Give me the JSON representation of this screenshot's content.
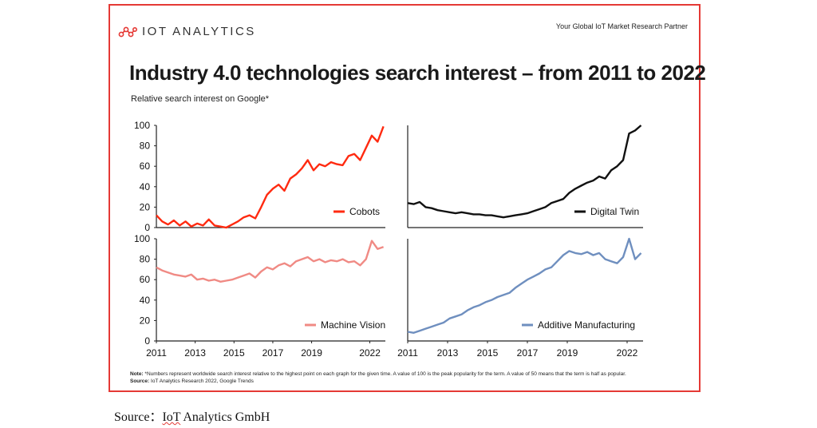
{
  "header": {
    "logo_text": "IOT ANALYTICS",
    "tagline": "Your Global IoT Market Research Partner",
    "title": "Industry 4.0 technologies search interest – from 2011 to 2022",
    "subtitle": "Relative search interest on Google*"
  },
  "footer": {
    "note_label": "Note:",
    "note_text": "*Numbers represent worldwide search interest relative to the highest point on each graph for the given time. A value of 100 is the peak popularity for the term. A value of 50 means that the term is half as popular.",
    "source_label": "Source:",
    "source_text": "IoT Analytics Research 2022, Google Trends"
  },
  "caption": {
    "prefix": "Source：",
    "underlined": "IoT",
    "rest": " Analytics GmbH"
  },
  "colors": {
    "frame": "#e53935",
    "cobots": "#ff2a10",
    "digital_twin": "#111111",
    "machine_vision": "#f08a84",
    "additive_manufacturing": "#6f8fbf"
  },
  "chart_data": [
    {
      "type": "line",
      "series_name": "Cobots",
      "color": "#ff2a10",
      "xlim": [
        2011,
        2022.8
      ],
      "ylim": [
        0,
        100
      ],
      "y_ticks": [
        0,
        20,
        40,
        60,
        80,
        100
      ],
      "x": [
        2011,
        2011.3,
        2011.6,
        2011.9,
        2012.2,
        2012.5,
        2012.8,
        2013.1,
        2013.4,
        2013.7,
        2014,
        2014.3,
        2014.6,
        2014.9,
        2015.2,
        2015.5,
        2015.8,
        2016.1,
        2016.4,
        2016.7,
        2017,
        2017.3,
        2017.6,
        2017.9,
        2018.2,
        2018.5,
        2018.8,
        2019.1,
        2019.4,
        2019.7,
        2020,
        2020.3,
        2020.6,
        2020.9,
        2021.2,
        2021.5,
        2021.8,
        2022.1,
        2022.4,
        2022.7
      ],
      "y": [
        12,
        6,
        3,
        7,
        2,
        6,
        1,
        4,
        2,
        8,
        2,
        1,
        0,
        3,
        6,
        10,
        12,
        9,
        20,
        32,
        38,
        42,
        36,
        48,
        52,
        58,
        66,
        56,
        62,
        60,
        64,
        62,
        61,
        70,
        72,
        66,
        78,
        90,
        84,
        99
      ]
    },
    {
      "type": "line",
      "series_name": "Digital Twin",
      "color": "#111111",
      "xlim": [
        2011,
        2022.8
      ],
      "ylim": [
        0,
        100
      ],
      "x": [
        2011,
        2011.3,
        2011.6,
        2011.9,
        2012.2,
        2012.5,
        2012.8,
        2013.1,
        2013.4,
        2013.7,
        2014,
        2014.3,
        2014.6,
        2014.9,
        2015.2,
        2015.5,
        2015.8,
        2016.1,
        2016.4,
        2016.7,
        2017,
        2017.3,
        2017.6,
        2017.9,
        2018.2,
        2018.5,
        2018.8,
        2019.1,
        2019.4,
        2019.7,
        2020,
        2020.3,
        2020.6,
        2020.9,
        2021.2,
        2021.5,
        2021.8,
        2022.1,
        2022.4,
        2022.7
      ],
      "y": [
        24,
        23,
        25,
        20,
        19,
        17,
        16,
        15,
        14,
        15,
        14,
        13,
        13,
        12,
        12,
        11,
        10,
        11,
        12,
        13,
        14,
        16,
        18,
        20,
        24,
        26,
        28,
        34,
        38,
        41,
        44,
        46,
        50,
        48,
        56,
        60,
        66,
        92,
        95,
        100
      ]
    },
    {
      "type": "line",
      "series_name": "Machine Vision",
      "color": "#f08a84",
      "xlim": [
        2011,
        2022.8
      ],
      "ylim": [
        0,
        100
      ],
      "y_ticks": [
        0,
        20,
        40,
        60,
        80,
        100
      ],
      "x_ticks": [
        2011,
        2013,
        2015,
        2017,
        2019,
        2022
      ],
      "x": [
        2011,
        2011.3,
        2011.6,
        2011.9,
        2012.2,
        2012.5,
        2012.8,
        2013.1,
        2013.4,
        2013.7,
        2014,
        2014.3,
        2014.6,
        2014.9,
        2015.2,
        2015.5,
        2015.8,
        2016.1,
        2016.4,
        2016.7,
        2017,
        2017.3,
        2017.6,
        2017.9,
        2018.2,
        2018.5,
        2018.8,
        2019.1,
        2019.4,
        2019.7,
        2020,
        2020.3,
        2020.6,
        2020.9,
        2021.2,
        2021.5,
        2021.8,
        2022.1,
        2022.4,
        2022.7
      ],
      "y": [
        72,
        69,
        67,
        65,
        64,
        63,
        65,
        60,
        61,
        59,
        60,
        58,
        59,
        60,
        62,
        64,
        66,
        62,
        68,
        72,
        70,
        74,
        76,
        73,
        78,
        80,
        82,
        78,
        80,
        77,
        79,
        78,
        80,
        77,
        78,
        74,
        80,
        98,
        90,
        92
      ]
    },
    {
      "type": "line",
      "series_name": "Additive Manufacturing",
      "color": "#6f8fbf",
      "xlim": [
        2011,
        2022.8
      ],
      "ylim": [
        0,
        100
      ],
      "x_ticks": [
        2011,
        2013,
        2015,
        2017,
        2019,
        2022
      ],
      "x": [
        2011,
        2011.3,
        2011.6,
        2011.9,
        2012.2,
        2012.5,
        2012.8,
        2013.1,
        2013.4,
        2013.7,
        2014,
        2014.3,
        2014.6,
        2014.9,
        2015.2,
        2015.5,
        2015.8,
        2016.1,
        2016.4,
        2016.7,
        2017,
        2017.3,
        2017.6,
        2017.9,
        2018.2,
        2018.5,
        2018.8,
        2019.1,
        2019.4,
        2019.7,
        2020,
        2020.3,
        2020.6,
        2020.9,
        2021.2,
        2021.5,
        2021.8,
        2022.1,
        2022.4,
        2022.7
      ],
      "y": [
        9,
        8,
        10,
        12,
        14,
        16,
        18,
        22,
        24,
        26,
        30,
        33,
        35,
        38,
        40,
        43,
        45,
        47,
        52,
        56,
        60,
        63,
        66,
        70,
        72,
        78,
        84,
        88,
        86,
        85,
        87,
        84,
        86,
        80,
        78,
        76,
        82,
        100,
        80,
        86
      ]
    }
  ]
}
